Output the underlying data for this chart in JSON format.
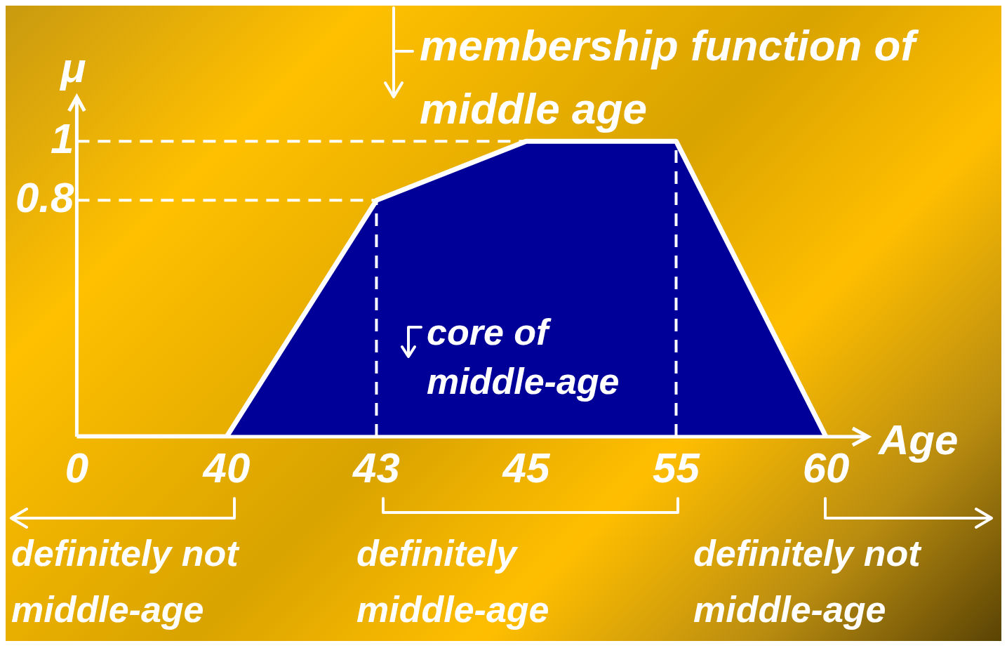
{
  "chart_data": {
    "type": "area",
    "xlabel": "Age",
    "ylabel": "μ",
    "categories": [
      "0",
      "40",
      "43",
      "45",
      "55",
      "60"
    ],
    "series": [
      {
        "color": "#000099",
        "values": [
          0,
          0,
          0.8,
          1,
          1,
          0
        ]
      }
    ],
    "ylim": [
      0,
      1.15
    ],
    "yticks": [
      0.8,
      1
    ],
    "ref_lines": [
      {
        "axis": "y",
        "value": 1,
        "line_style": "dashed"
      },
      {
        "axis": "y",
        "value": 0.8,
        "line_style": "dashed"
      },
      {
        "axis": "x",
        "value": "43",
        "line_style": "dashed"
      },
      {
        "axis": "x",
        "value": "55",
        "line_style": "dashed"
      }
    ],
    "annotations": [
      "membership function of middle age",
      "core of middle-age",
      "definitely not middle-age",
      "definitely middle-age",
      "definitely not middle-age"
    ],
    "grid": false,
    "legend": false
  }
}
